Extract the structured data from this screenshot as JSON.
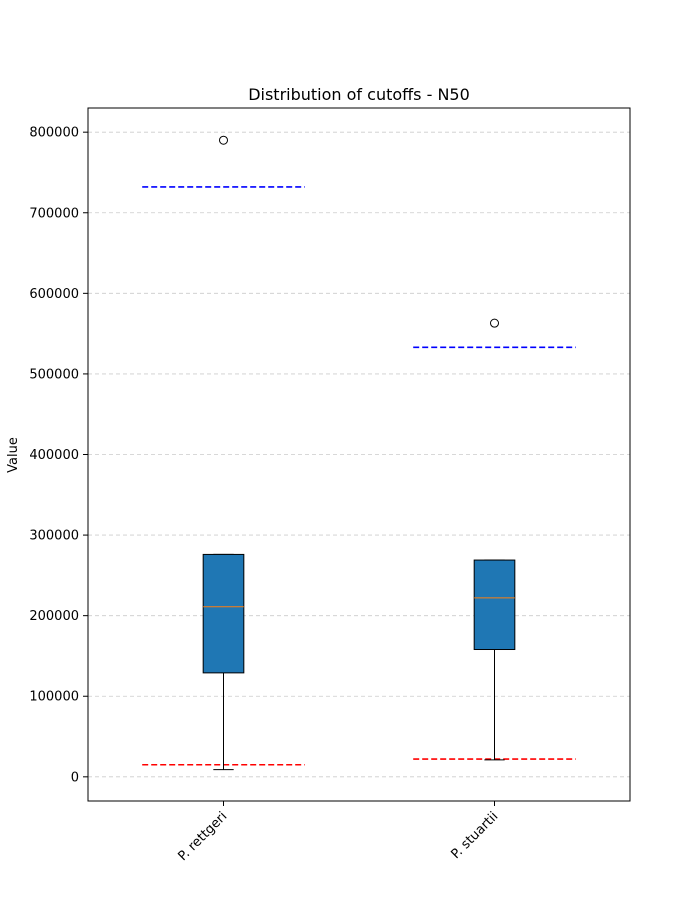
{
  "chart_data": {
    "type": "box",
    "title": "Distribution of cutoffs - N50",
    "xlabel": "",
    "ylabel": "Value",
    "ylim": [
      -30000,
      830000
    ],
    "yticks": [
      0,
      100000,
      200000,
      300000,
      400000,
      500000,
      600000,
      700000,
      800000
    ],
    "ytick_labels": [
      "0",
      "100000",
      "200000",
      "300000",
      "400000",
      "500000",
      "600000",
      "700000",
      "800000"
    ],
    "grid": "y-dashed",
    "categories": [
      "P. rettgeri",
      "P. stuartii"
    ],
    "boxes": [
      {
        "category": "P. rettgeri",
        "whisker_low": 9000,
        "q1": 129000,
        "median": 211000,
        "q3": 276000,
        "whisker_high": 276000,
        "outliers": [
          790000
        ],
        "lower_cutoff": 15000,
        "upper_cutoff": 732000
      },
      {
        "category": "P. stuartii",
        "whisker_low": 21000,
        "q1": 158000,
        "median": 222000,
        "q3": 269000,
        "whisker_high": 269000,
        "outliers": [
          563000
        ],
        "lower_cutoff": 22000,
        "upper_cutoff": 533000
      }
    ],
    "colors": {
      "box_fill": "#1f77b4",
      "median": "#ff7f0e",
      "lower_cutoff": "#ff0000",
      "upper_cutoff": "#0000ff",
      "grid": "#cccccc"
    }
  }
}
